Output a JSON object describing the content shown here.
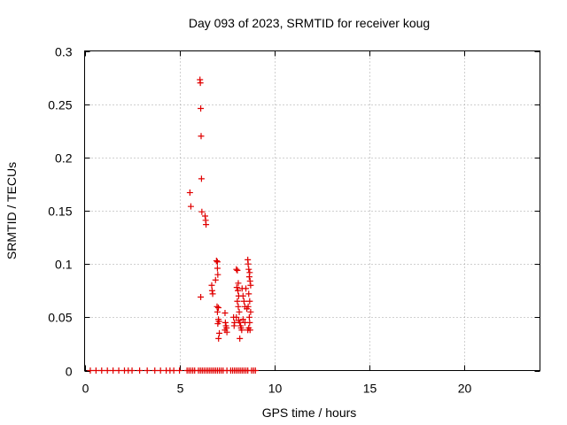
{
  "chart_data": {
    "type": "scatter",
    "title": "Day 093 of 2023, SRMTID for receiver koug",
    "xlabel": "GPS time / hours",
    "ylabel": "SRMTID / TECUs",
    "xlim": [
      0,
      24
    ],
    "ylim": [
      0,
      0.3
    ],
    "x_ticks": [
      0,
      5,
      10,
      15,
      20
    ],
    "x_tick_labels": [
      "0",
      "5",
      "10",
      "15",
      "20"
    ],
    "y_ticks": [
      0,
      0.05,
      0.1,
      0.15,
      0.2,
      0.25,
      0.3
    ],
    "y_tick_labels": [
      "0",
      "0.05",
      "0.1",
      "0.15",
      "0.2",
      "0.25",
      "0.3"
    ],
    "grid": true,
    "marker": "+",
    "marker_color": "#e00000",
    "series": [
      {
        "name": "SRMTID",
        "points": [
          [
            0.3,
            0
          ],
          [
            0.6,
            0
          ],
          [
            0.9,
            0
          ],
          [
            1.2,
            0
          ],
          [
            1.5,
            0
          ],
          [
            1.8,
            0
          ],
          [
            2.1,
            0
          ],
          [
            2.3,
            0
          ],
          [
            2.5,
            0
          ],
          [
            2.9,
            0
          ],
          [
            3.3,
            0
          ],
          [
            3.7,
            0
          ],
          [
            4.0,
            0
          ],
          [
            4.3,
            0
          ],
          [
            4.5,
            0
          ],
          [
            4.7,
            0
          ],
          [
            5.0,
            0
          ],
          [
            5.4,
            0
          ],
          [
            5.5,
            0
          ],
          [
            5.6,
            0
          ],
          [
            5.7,
            0
          ],
          [
            5.8,
            0
          ],
          [
            6.0,
            0
          ],
          [
            6.1,
            0
          ],
          [
            6.2,
            0
          ],
          [
            6.3,
            0
          ],
          [
            6.4,
            0
          ],
          [
            6.5,
            0
          ],
          [
            6.6,
            0
          ],
          [
            6.7,
            0
          ],
          [
            6.8,
            0
          ],
          [
            6.9,
            0
          ],
          [
            7.0,
            0
          ],
          [
            7.1,
            0
          ],
          [
            7.2,
            0
          ],
          [
            7.3,
            0
          ],
          [
            7.5,
            0
          ],
          [
            7.7,
            0
          ],
          [
            7.8,
            0
          ],
          [
            7.9,
            0
          ],
          [
            8.0,
            0
          ],
          [
            8.1,
            0
          ],
          [
            8.2,
            0
          ],
          [
            8.3,
            0
          ],
          [
            8.4,
            0
          ],
          [
            8.5,
            0
          ],
          [
            8.6,
            0
          ],
          [
            8.8,
            0
          ],
          [
            8.9,
            0
          ],
          [
            9.0,
            0
          ],
          [
            5.55,
            0.167
          ],
          [
            5.6,
            0.154
          ],
          [
            6.08,
            0.273
          ],
          [
            6.1,
            0.27
          ],
          [
            6.12,
            0.246
          ],
          [
            6.14,
            0.22
          ],
          [
            6.16,
            0.18
          ],
          [
            6.18,
            0.149
          ],
          [
            6.12,
            0.069
          ],
          [
            6.35,
            0.145
          ],
          [
            6.38,
            0.141
          ],
          [
            6.4,
            0.137
          ],
          [
            6.7,
            0.08
          ],
          [
            6.72,
            0.075
          ],
          [
            6.75,
            0.072
          ],
          [
            6.9,
            0.085
          ],
          [
            6.95,
            0.103
          ],
          [
            7.0,
            0.102
          ],
          [
            7.0,
            0.096
          ],
          [
            7.02,
            0.09
          ],
          [
            6.98,
            0.06
          ],
          [
            7.05,
            0.059
          ],
          [
            7.0,
            0.055
          ],
          [
            7.05,
            0.048
          ],
          [
            7.02,
            0.044
          ],
          [
            7.08,
            0.046
          ],
          [
            7.1,
            0.035
          ],
          [
            7.06,
            0.03
          ],
          [
            7.4,
            0.054
          ],
          [
            7.42,
            0.045
          ],
          [
            7.45,
            0.042
          ],
          [
            7.48,
            0.04
          ],
          [
            7.4,
            0.038
          ],
          [
            7.5,
            0.036
          ],
          [
            7.85,
            0.05
          ],
          [
            7.9,
            0.045
          ],
          [
            7.88,
            0.042
          ],
          [
            8.0,
            0.095
          ],
          [
            8.05,
            0.094
          ],
          [
            8.1,
            0.082
          ],
          [
            8.02,
            0.078
          ],
          [
            8.08,
            0.075
          ],
          [
            8.12,
            0.07
          ],
          [
            8.05,
            0.065
          ],
          [
            8.1,
            0.06
          ],
          [
            8.15,
            0.055
          ],
          [
            8.0,
            0.05
          ],
          [
            8.12,
            0.047
          ],
          [
            8.18,
            0.045
          ],
          [
            8.22,
            0.042
          ],
          [
            8.25,
            0.04
          ],
          [
            8.28,
            0.038
          ],
          [
            8.18,
            0.03
          ],
          [
            8.3,
            0.077
          ],
          [
            8.35,
            0.07
          ],
          [
            8.4,
            0.065
          ],
          [
            8.45,
            0.06
          ],
          [
            8.5,
            0.077
          ],
          [
            8.55,
            0.058
          ],
          [
            8.35,
            0.048
          ],
          [
            8.45,
            0.045
          ],
          [
            8.6,
            0.104
          ],
          [
            8.62,
            0.1
          ],
          [
            8.65,
            0.095
          ],
          [
            8.7,
            0.092
          ],
          [
            8.68,
            0.088
          ],
          [
            8.72,
            0.084
          ],
          [
            8.75,
            0.08
          ],
          [
            8.65,
            0.072
          ],
          [
            8.7,
            0.065
          ],
          [
            8.62,
            0.06
          ],
          [
            8.75,
            0.055
          ],
          [
            8.68,
            0.05
          ],
          [
            8.7,
            0.045
          ],
          [
            8.65,
            0.04
          ],
          [
            8.72,
            0.038
          ],
          [
            8.6,
            0.038
          ]
        ]
      }
    ]
  }
}
